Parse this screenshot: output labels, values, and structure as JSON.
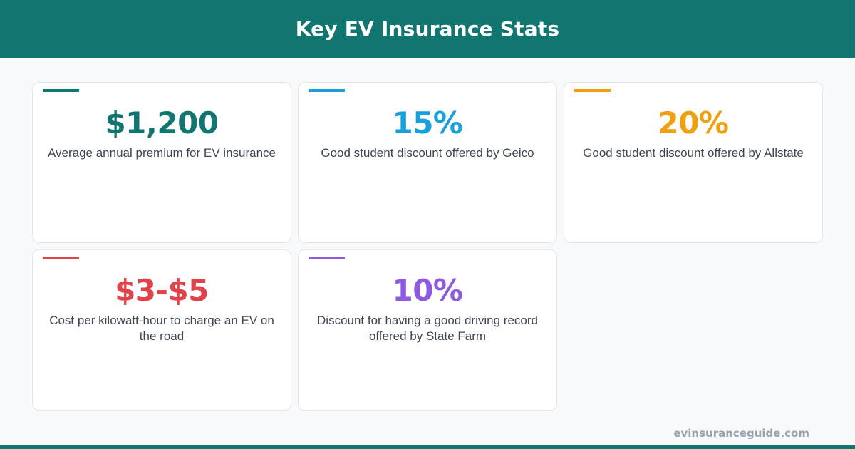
{
  "header": {
    "title": "Key EV Insurance Stats"
  },
  "colors": {
    "header_bg": "#11766f",
    "teal": "#11766f",
    "blue": "#1aa0d8",
    "orange": "#f0a00f",
    "red": "#e2434a",
    "purple": "#8d5ae0"
  },
  "stats": [
    {
      "value": "$1,200",
      "description": "Average annual premium for EV insurance",
      "color": "#11766f"
    },
    {
      "value": "15%",
      "description": "Good student discount offered by Geico",
      "color": "#1aa0d8"
    },
    {
      "value": "20%",
      "description": "Good student discount offered by Allstate",
      "color": "#f0a00f"
    },
    {
      "value": "$3-$5",
      "description": "Cost per kilowatt-hour to charge an EV on the road",
      "color": "#e2434a"
    },
    {
      "value": "10%",
      "description": "Discount for having a good driving record offered by State Farm",
      "color": "#8d5ae0"
    }
  ],
  "footer": {
    "site": "evinsuranceguide.com"
  }
}
